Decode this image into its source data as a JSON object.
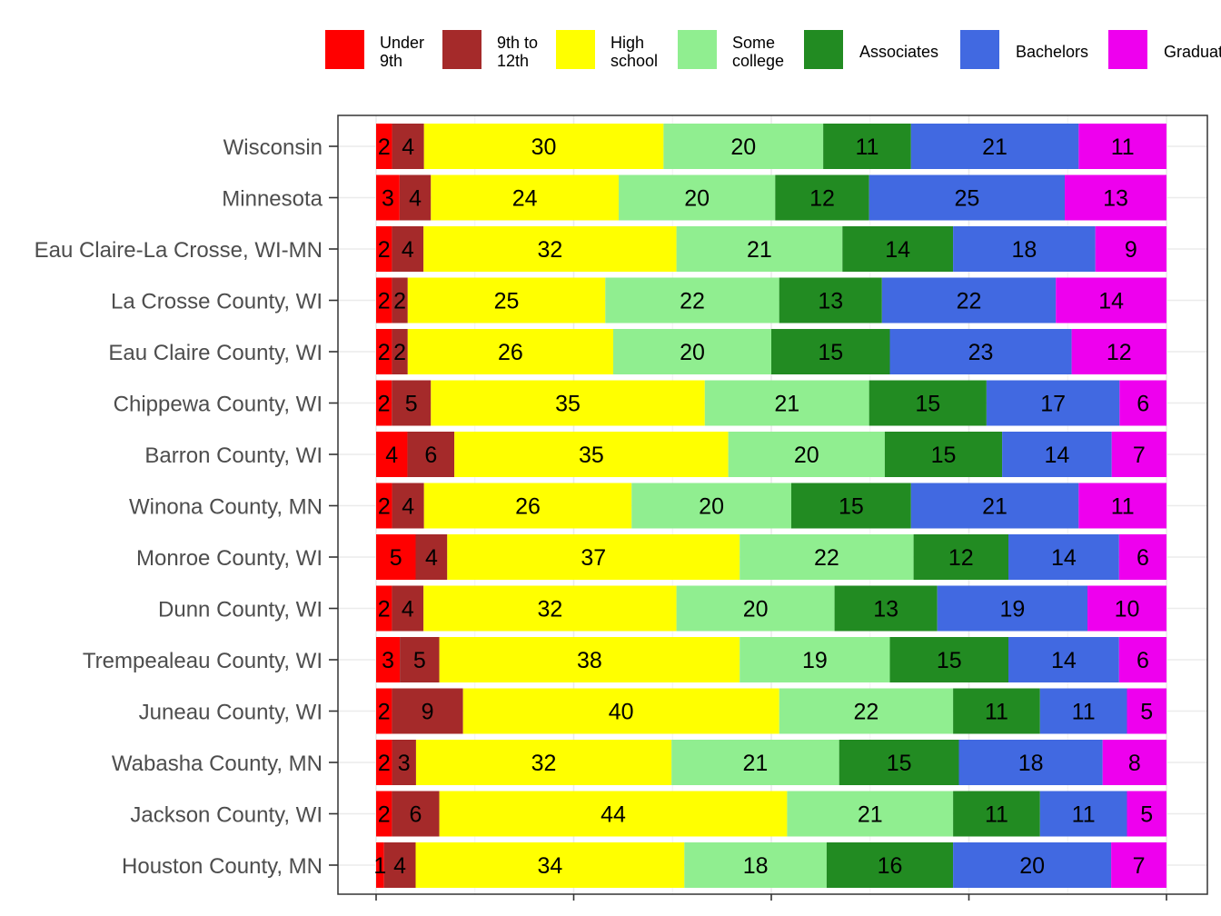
{
  "chart_data": {
    "type": "bar",
    "orientation": "horizontal",
    "stacked": true,
    "title": "",
    "xlabel": "",
    "ylabel": "",
    "xlim": [
      0,
      100
    ],
    "grid": true,
    "legend_position": "top",
    "categories": [
      "Wisconsin",
      "Minnesota",
      "Eau Claire-La Crosse, WI-MN",
      "La Crosse County, WI",
      "Eau Claire County, WI",
      "Chippewa County, WI",
      "Barron County, WI",
      "Winona County, MN",
      "Monroe County, WI",
      "Dunn County, WI",
      "Trempealeau County, WI",
      "Juneau County, WI",
      "Wabasha County, MN",
      "Jackson County, WI",
      "Houston County, MN"
    ],
    "series": [
      {
        "name": "Under 9th",
        "legend_lines": [
          "Under",
          "9th"
        ],
        "color": "#ff0000",
        "values": [
          2,
          3,
          2,
          2,
          2,
          2,
          4,
          2,
          5,
          2,
          3,
          2,
          2,
          2,
          1
        ]
      },
      {
        "name": "9th to 12th",
        "legend_lines": [
          "9th to",
          "12th"
        ],
        "color": "#a52a2a",
        "values": [
          4,
          4,
          4,
          2,
          2,
          5,
          6,
          4,
          4,
          4,
          5,
          9,
          3,
          6,
          4
        ]
      },
      {
        "name": "High school",
        "legend_lines": [
          "High",
          "school"
        ],
        "color": "#ffff00",
        "values": [
          30,
          24,
          32,
          25,
          26,
          35,
          35,
          26,
          37,
          32,
          38,
          40,
          32,
          44,
          34
        ]
      },
      {
        "name": "Some college",
        "legend_lines": [
          "Some",
          "college"
        ],
        "color": "#90ee90",
        "values": [
          20,
          20,
          21,
          22,
          20,
          21,
          20,
          20,
          22,
          20,
          19,
          22,
          21,
          21,
          18
        ]
      },
      {
        "name": "Associates",
        "legend_lines": [
          "Associates"
        ],
        "color": "#228b22",
        "values": [
          11,
          12,
          14,
          13,
          15,
          15,
          15,
          15,
          12,
          13,
          15,
          11,
          15,
          11,
          16
        ]
      },
      {
        "name": "Bachelors",
        "legend_lines": [
          "Bachelors"
        ],
        "color": "#4169e1",
        "values": [
          21,
          25,
          18,
          22,
          23,
          17,
          14,
          21,
          14,
          19,
          14,
          11,
          18,
          11,
          20
        ]
      },
      {
        "name": "Graduate",
        "legend_lines": [
          "Graduate"
        ],
        "color": "#ee00ee",
        "values": [
          11,
          13,
          9,
          14,
          12,
          6,
          7,
          11,
          6,
          10,
          6,
          5,
          8,
          5,
          7
        ]
      }
    ]
  }
}
